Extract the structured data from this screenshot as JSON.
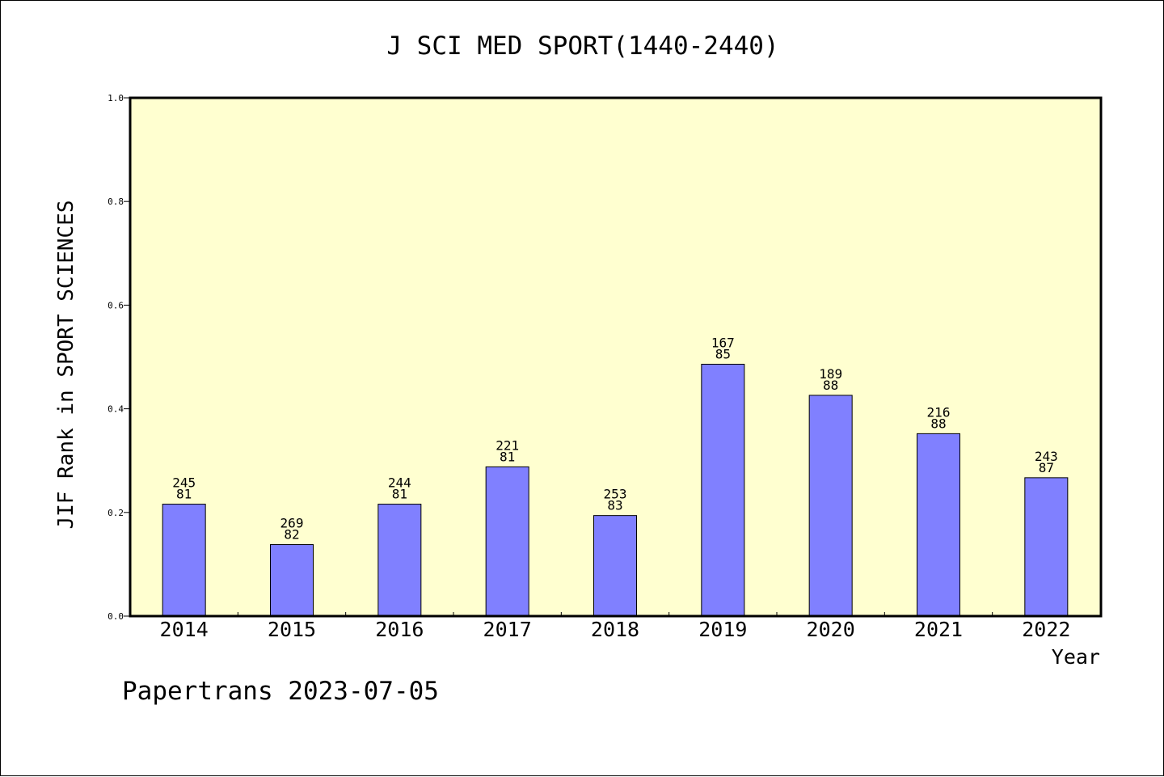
{
  "chart_data": {
    "type": "bar",
    "title": "J SCI MED SPORT(1440-2440)",
    "xlabel": "Year",
    "ylabel": "JIF Rank in SPORT SCIENCES",
    "ylim": [
      0,
      1.0
    ],
    "yticks": [
      "0.0",
      "0.2",
      "0.4",
      "0.6",
      "0.8",
      "1.0"
    ],
    "grid": false,
    "categories": [
      "2014",
      "2015",
      "2016",
      "2017",
      "2018",
      "2019",
      "2020",
      "2021",
      "2022"
    ],
    "values": [
      0.216,
      0.138,
      0.216,
      0.288,
      0.194,
      0.486,
      0.426,
      0.352,
      0.267
    ],
    "labels_top": [
      "245",
      "269",
      "244",
      "221",
      "253",
      "167",
      "189",
      "216",
      "243"
    ],
    "labels_bottom": [
      "81",
      "82",
      "81",
      "81",
      "83",
      "85",
      "88",
      "88",
      "87"
    ],
    "bar_color": "#8080ff",
    "plot_background": "#ffffd0"
  },
  "footer": {
    "watermark": "Papertrans 2023-07-05"
  }
}
